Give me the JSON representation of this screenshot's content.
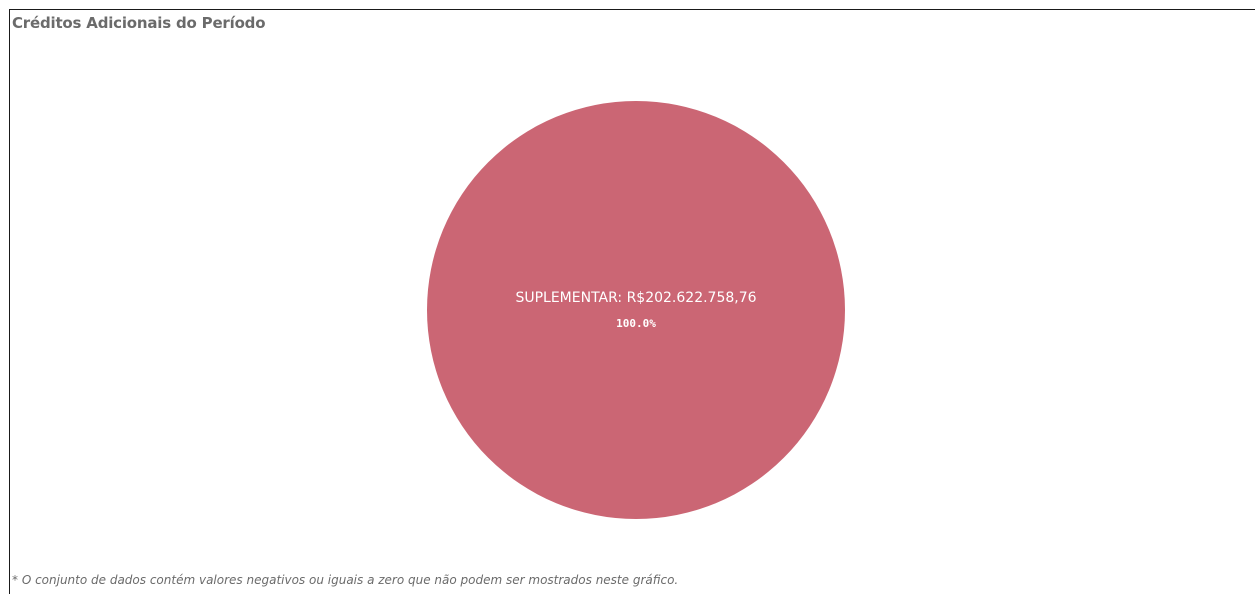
{
  "title": "Créditos Adicionais do Período",
  "footnote": "* O conjunto de dados contém valores negativos ou iguais a zero que não podem ser mostrados neste gráfico.",
  "chart_data": {
    "type": "pie",
    "title": "Créditos Adicionais do Período",
    "slices": [
      {
        "label": "SUPLEMENTAR",
        "value": 202622758.76,
        "value_label": "R$202.622.758,76",
        "percent_label": "100.0%",
        "color": "#cb6674"
      }
    ],
    "label_color": "#ffffff"
  }
}
